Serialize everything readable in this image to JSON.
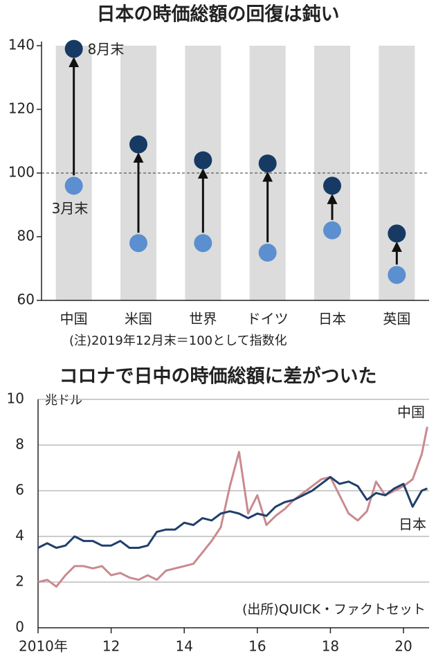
{
  "chart_data": [
    {
      "type": "dot_arrow",
      "title": "日本の時価総額の回復は鈍い",
      "categories": [
        "中国",
        "米国",
        "世界",
        "ドイツ",
        "日本",
        "英国"
      ],
      "series": [
        {
          "name": "3月末",
          "color": "#5b8fd0",
          "values": [
            96,
            78,
            78,
            75,
            82,
            68
          ]
        },
        {
          "name": "8月末",
          "color": "#163a63",
          "values": [
            139,
            109,
            104,
            103,
            96,
            81
          ]
        }
      ],
      "ylim": [
        60,
        140
      ],
      "yticks": [
        60,
        80,
        100,
        120,
        140
      ],
      "reference_line": 100,
      "note": "(注)2019年12月末＝100として指数化"
    },
    {
      "type": "line",
      "title": "コロナで日中の時価総額に差がついた",
      "y_label": "兆ドル",
      "x": [
        2010,
        2010.25,
        2010.5,
        2010.75,
        2011,
        2011.25,
        2011.5,
        2011.75,
        2012,
        2012.25,
        2012.5,
        2012.75,
        2013,
        2013.25,
        2013.5,
        2013.75,
        2014,
        2014.25,
        2014.5,
        2014.75,
        2015,
        2015.25,
        2015.5,
        2015.75,
        2016,
        2016.25,
        2016.5,
        2016.75,
        2017,
        2017.25,
        2017.5,
        2017.75,
        2018,
        2018.25,
        2018.5,
        2018.75,
        2019,
        2019.25,
        2019.5,
        2019.75,
        2020,
        2020.25,
        2020.5,
        2020.65
      ],
      "series": [
        {
          "name": "中国",
          "color": "#c98a8f",
          "values": [
            2.0,
            2.1,
            1.8,
            2.3,
            2.7,
            2.7,
            2.6,
            2.7,
            2.3,
            2.4,
            2.2,
            2.1,
            2.3,
            2.1,
            2.5,
            2.6,
            2.7,
            2.8,
            3.3,
            3.8,
            4.4,
            6.2,
            7.7,
            5.0,
            5.8,
            4.5,
            4.9,
            5.2,
            5.6,
            5.9,
            6.2,
            6.5,
            6.6,
            5.8,
            5.0,
            4.7,
            5.1,
            6.4,
            5.8,
            6.0,
            6.2,
            6.5,
            7.6,
            8.8
          ]
        },
        {
          "name": "日本",
          "color": "#1f3f6b",
          "values": [
            3.5,
            3.7,
            3.5,
            3.6,
            4.0,
            3.8,
            3.8,
            3.6,
            3.6,
            3.8,
            3.5,
            3.5,
            3.6,
            4.2,
            4.3,
            4.3,
            4.6,
            4.5,
            4.8,
            4.7,
            5.0,
            5.1,
            5.0,
            4.8,
            5.0,
            4.9,
            5.3,
            5.5,
            5.6,
            5.8,
            6.0,
            6.3,
            6.6,
            6.3,
            6.4,
            6.2,
            5.6,
            5.9,
            5.8,
            6.1,
            6.3,
            5.3,
            6.0,
            6.1
          ]
        }
      ],
      "xlim": [
        2010,
        2020.7
      ],
      "xticks": [
        {
          "value": 2010,
          "label": "2010年"
        },
        {
          "value": 2012,
          "label": "12"
        },
        {
          "value": 2014,
          "label": "14"
        },
        {
          "value": 2016,
          "label": "16"
        },
        {
          "value": 2018,
          "label": "18"
        },
        {
          "value": 2020,
          "label": "20"
        }
      ],
      "ylim": [
        0,
        10
      ],
      "yticks": [
        0,
        2,
        4,
        6,
        8,
        10
      ],
      "grid": true,
      "source": "(出所)QUICK・ファクトセット"
    }
  ]
}
